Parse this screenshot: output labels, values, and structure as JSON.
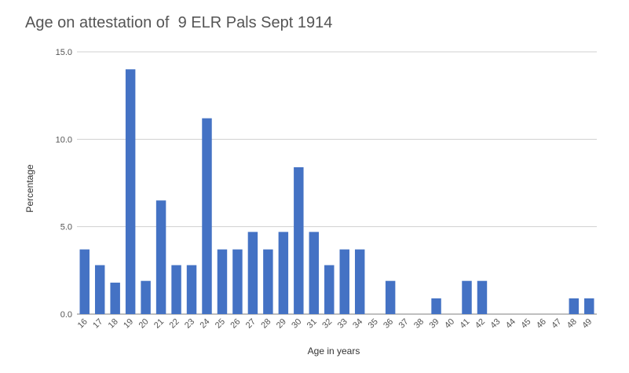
{
  "chart_data": {
    "type": "bar",
    "title": "Age on attestation of  9 ELR Pals Sept 1914",
    "xlabel": "Age in years",
    "ylabel": "Percentage",
    "ylim": [
      0,
      15
    ],
    "yticks": [
      "0.0",
      "5.0",
      "10.0",
      "15.0"
    ],
    "categories": [
      "16",
      "17",
      "18",
      "19",
      "20",
      "21",
      "22",
      "23",
      "24",
      "25",
      "26",
      "27",
      "28",
      "29",
      "30",
      "31",
      "32",
      "33",
      "34",
      "35",
      "36",
      "37",
      "38",
      "39",
      "40",
      "41",
      "42",
      "43",
      "44",
      "45",
      "46",
      "47",
      "48",
      "49"
    ],
    "values": [
      3.7,
      2.8,
      1.8,
      14.0,
      1.9,
      6.5,
      2.8,
      2.8,
      11.2,
      3.7,
      3.7,
      4.7,
      3.7,
      4.7,
      8.4,
      4.7,
      2.8,
      3.7,
      3.7,
      0,
      1.9,
      0,
      0,
      0.9,
      0,
      1.9,
      1.9,
      0,
      0,
      0,
      0,
      0,
      0.9,
      0.9
    ],
    "grid": true,
    "legend": "none",
    "bar_color": "#4472c4",
    "grid_color": "#d0d0d0",
    "text_color": "#555555"
  }
}
